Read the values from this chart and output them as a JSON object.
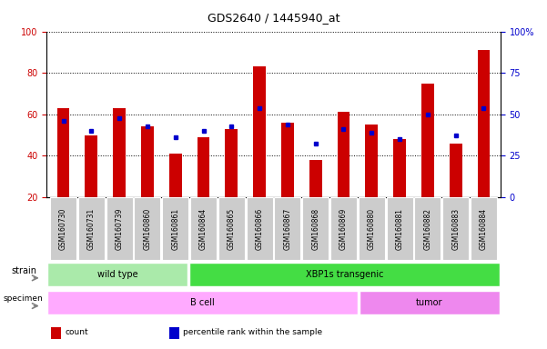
{
  "title": "GDS2640 / 1445940_at",
  "samples": [
    "GSM160730",
    "GSM160731",
    "GSM160739",
    "GSM160860",
    "GSM160861",
    "GSM160864",
    "GSM160865",
    "GSM160866",
    "GSM160867",
    "GSM160868",
    "GSM160869",
    "GSM160880",
    "GSM160881",
    "GSM160882",
    "GSM160883",
    "GSM160884"
  ],
  "red_values": [
    63,
    50,
    63,
    54,
    41,
    49,
    53,
    83,
    56,
    38,
    61,
    55,
    48,
    75,
    46,
    91
  ],
  "blue_values": [
    57,
    52,
    58,
    54,
    49,
    52,
    54,
    63,
    55,
    46,
    53,
    51,
    48,
    60,
    50,
    63
  ],
  "y_min": 20,
  "y_max": 100,
  "y_ticks_left": [
    20,
    40,
    60,
    80,
    100
  ],
  "y_ticks_right": [
    0,
    25,
    50,
    75,
    100
  ],
  "y_ticks_right_labels": [
    "0",
    "25",
    "50",
    "75",
    "100%"
  ],
  "strain_groups": [
    {
      "label": "wild type",
      "start": 0,
      "end": 5,
      "color": "#aaeaaa"
    },
    {
      "label": "XBP1s transgenic",
      "start": 5,
      "end": 16,
      "color": "#44dd44"
    }
  ],
  "specimen_groups": [
    {
      "label": "B cell",
      "start": 0,
      "end": 11,
      "color": "#ffaaff"
    },
    {
      "label": "tumor",
      "start": 11,
      "end": 16,
      "color": "#ee88ee"
    }
  ],
  "legend_items": [
    {
      "color": "#cc0000",
      "label": "count"
    },
    {
      "color": "#0000cc",
      "label": "percentile rank within the sample"
    }
  ],
  "bar_color": "#cc0000",
  "dot_color": "#0000cc",
  "left_tick_color": "#cc0000",
  "right_tick_color": "#0000cc"
}
